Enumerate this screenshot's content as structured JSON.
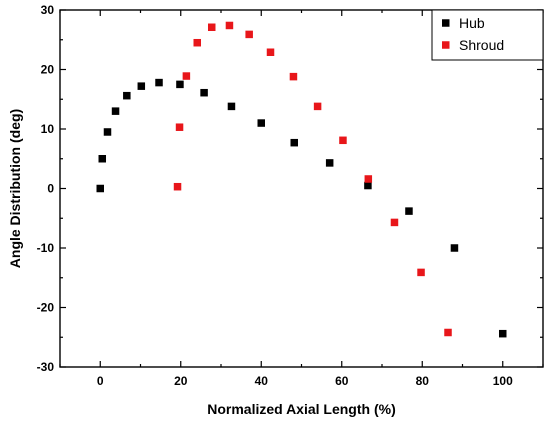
{
  "chart_data": {
    "type": "scatter",
    "xlabel": "Normalized Axial Length (%)",
    "ylabel": "Angle Distribution (deg)",
    "xlim": [
      -10,
      110
    ],
    "ylim": [
      -30,
      30
    ],
    "xticks": [
      0,
      20,
      40,
      60,
      80,
      100
    ],
    "yticks": [
      -30,
      -20,
      -10,
      0,
      10,
      20,
      30
    ],
    "grid": false,
    "legend_position": "top-right",
    "series": [
      {
        "name": "Hub",
        "color": "#000000",
        "marker": "square",
        "points": [
          [
            0.0,
            0.0
          ],
          [
            0.5,
            5.0
          ],
          [
            1.8,
            9.5
          ],
          [
            3.8,
            13.0
          ],
          [
            6.6,
            15.6
          ],
          [
            10.2,
            17.2
          ],
          [
            14.6,
            17.8
          ],
          [
            19.8,
            17.5
          ],
          [
            25.8,
            16.1
          ],
          [
            32.6,
            13.8
          ],
          [
            40.0,
            11.0
          ],
          [
            48.2,
            7.7
          ],
          [
            57.0,
            4.3
          ],
          [
            66.5,
            0.5
          ],
          [
            76.7,
            -3.8
          ],
          [
            88.0,
            -10.0
          ],
          [
            100.0,
            -24.4
          ]
        ]
      },
      {
        "name": "Shroud",
        "color": "#e8161a",
        "marker": "square",
        "points": [
          [
            19.2,
            0.3
          ],
          [
            19.7,
            10.3
          ],
          [
            21.4,
            18.9
          ],
          [
            24.1,
            24.5
          ],
          [
            27.7,
            27.1
          ],
          [
            32.1,
            27.4
          ],
          [
            37.0,
            25.9
          ],
          [
            42.3,
            22.9
          ],
          [
            48.0,
            18.8
          ],
          [
            54.0,
            13.8
          ],
          [
            60.3,
            8.1
          ],
          [
            66.6,
            1.6
          ],
          [
            73.1,
            -5.7
          ],
          [
            79.7,
            -14.1
          ],
          [
            86.4,
            -24.2
          ]
        ]
      }
    ]
  }
}
